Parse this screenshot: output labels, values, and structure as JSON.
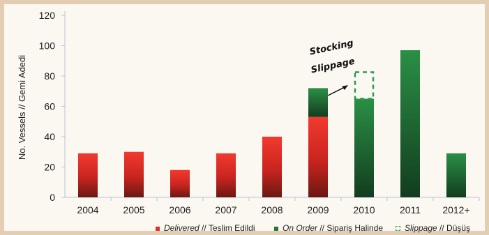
{
  "chart_data": {
    "type": "bar",
    "categories": [
      "2004",
      "2005",
      "2006",
      "2007",
      "2008",
      "2009",
      "2010",
      "2011",
      "2012+"
    ],
    "series": [
      {
        "name": "Delivered",
        "values": [
          29,
          30,
          18,
          29,
          40,
          53,
          0,
          0,
          0
        ],
        "color": "#e0302a"
      },
      {
        "name": "On Order",
        "values": [
          0,
          0,
          0,
          0,
          0,
          19,
          65,
          97,
          29
        ],
        "color": "#1e7a35"
      },
      {
        "name": "Slippage",
        "values": [
          0,
          0,
          0,
          0,
          0,
          0,
          18,
          0,
          0
        ],
        "color": "#2e9a55"
      }
    ],
    "ylabel": "No. Vessels // Gemi Adedi",
    "ylim": [
      0,
      120
    ],
    "yticks": [
      0,
      20,
      40,
      60,
      80,
      100,
      120
    ],
    "grid": false,
    "annotation": [
      "Stocking",
      "Slippage"
    ],
    "legend": {
      "placement": "bottom",
      "entries": [
        {
          "italic": "Delivered",
          "text": " // Teslim Edildi"
        },
        {
          "italic": "On Order",
          "text": " // Sipariş Halinde"
        },
        {
          "italic": "Slippage",
          "text": " // Düşüş"
        }
      ]
    }
  }
}
